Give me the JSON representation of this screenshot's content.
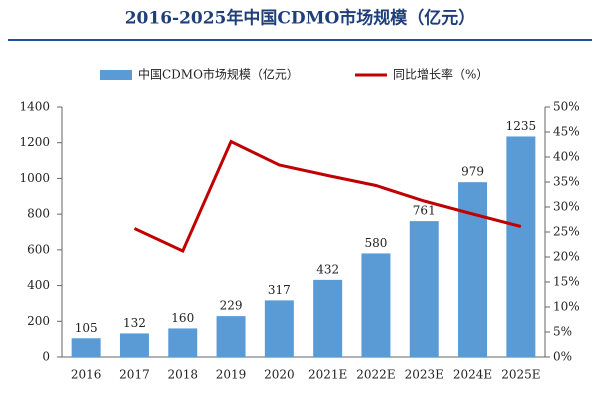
{
  "chart_data": {
    "type": "combo",
    "title": "2016-2025年中国CDMO市场规模（亿元）",
    "categories": [
      "2016",
      "2017",
      "2018",
      "2019",
      "2020",
      "2021E",
      "2022E",
      "2023E",
      "2024E",
      "2025E"
    ],
    "series": [
      {
        "name": "中国CDMO市场规模（亿元）",
        "color": "#5b9bd5",
        "values": [
          105,
          132,
          160,
          229,
          317,
          432,
          580,
          761,
          979,
          1235
        ]
      },
      {
        "name": "同比增长率（%）",
        "color": "#c00000",
        "axis": "y2",
        "values": [
          null,
          25.7,
          21.2,
          43.1,
          38.4,
          36.3,
          34.3,
          31.2,
          28.6,
          26.1
        ]
      }
    ],
    "ylim": [
      0,
      1400
    ],
    "yticks": [
      0,
      200,
      400,
      600,
      800,
      1000,
      1200,
      1400
    ],
    "y2lim": [
      0,
      50
    ],
    "y2ticks": [
      {
        "value": 0,
        "label": "0%"
      },
      {
        "value": 5,
        "label": "5%"
      },
      {
        "value": 10,
        "label": "10%"
      },
      {
        "value": 15,
        "label": "15%"
      },
      {
        "value": 20,
        "label": "20%"
      },
      {
        "value": 25,
        "label": "25%"
      },
      {
        "value": 30,
        "label": "30%"
      },
      {
        "value": 35,
        "label": "35%"
      },
      {
        "value": 40,
        "label": "40%"
      },
      {
        "value": 45,
        "label": "45%"
      },
      {
        "value": 50,
        "label": "50%"
      }
    ]
  }
}
